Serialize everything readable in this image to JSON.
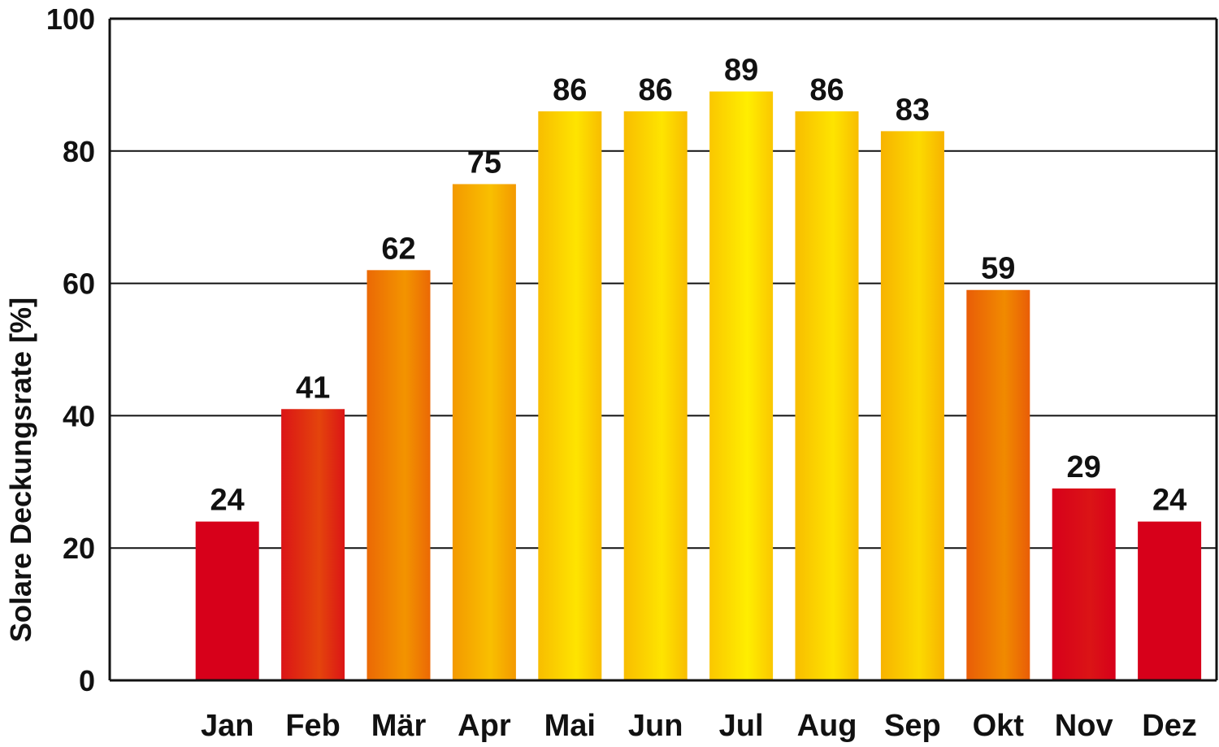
{
  "chart_data": {
    "type": "bar",
    "title": "",
    "xlabel": "",
    "ylabel": "Solare Deckungsrate [%]",
    "ylim": [
      0,
      100
    ],
    "yticks": [
      0,
      20,
      40,
      60,
      80,
      100
    ],
    "grid": true,
    "categories": [
      "Jan",
      "Feb",
      "Mär",
      "Apr",
      "Mai",
      "Jun",
      "Jul",
      "Aug",
      "Sep",
      "Okt",
      "Nov",
      "Dez"
    ],
    "values": [
      24,
      41,
      62,
      75,
      86,
      86,
      89,
      86,
      83,
      59,
      29,
      24
    ],
    "colors": {
      "low": "#d7001a",
      "high": "#ffee00",
      "axis": "#111111"
    }
  }
}
